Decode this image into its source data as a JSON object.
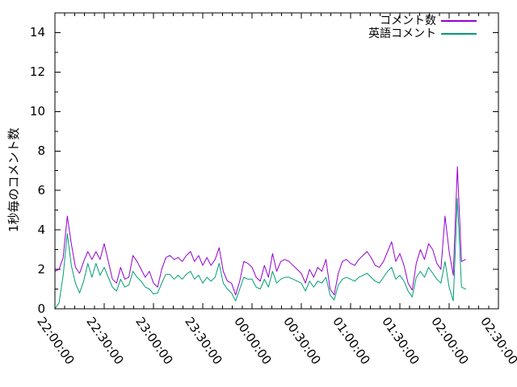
{
  "figure": {
    "background": "#ffffff",
    "border_color": "#000000",
    "text_color": "#000000"
  },
  "chart_data": {
    "type": "line",
    "title": "",
    "xlabel": "",
    "ylabel": "1秒毎のコメント数",
    "ylim": [
      0,
      15
    ],
    "grid": false,
    "legend_position": "top-right-inside",
    "y_major_ticks": [
      0,
      2,
      4,
      6,
      8,
      10,
      12,
      14
    ],
    "y_minor_step": 1,
    "x_axis": {
      "range_minutes": [
        0,
        270
      ],
      "minor_step_minutes": 6,
      "major_ticks": [
        {
          "minutes": 0,
          "label": "22:00:00"
        },
        {
          "minutes": 30,
          "label": "22:30:00"
        },
        {
          "minutes": 60,
          "label": "23:00:00"
        },
        {
          "minutes": 90,
          "label": "23:30:00"
        },
        {
          "minutes": 120,
          "label": "00:00:00"
        },
        {
          "minutes": 150,
          "label": "00:30:00"
        },
        {
          "minutes": 180,
          "label": "01:00:00"
        },
        {
          "minutes": 210,
          "label": "01:30:00"
        },
        {
          "minutes": 240,
          "label": "02:00:00"
        },
        {
          "minutes": 270,
          "label": "02:30:00"
        }
      ]
    },
    "sampling": {
      "start_time": "22:00:00",
      "end_time": "02:10:00",
      "interval_seconds": 150,
      "points": 101
    },
    "series": [
      {
        "name": "コメント数",
        "color": "#9400d3",
        "values": [
          1.9,
          2.0,
          2.6,
          4.7,
          3.3,
          2.1,
          1.8,
          2.4,
          2.9,
          2.5,
          2.9,
          2.5,
          3.3,
          2.4,
          1.5,
          1.3,
          2.1,
          1.5,
          1.6,
          2.7,
          2.4,
          2.0,
          1.6,
          1.9,
          1.3,
          1.1,
          2.0,
          2.6,
          2.7,
          2.5,
          2.6,
          2.4,
          2.7,
          2.9,
          2.4,
          2.7,
          2.2,
          2.6,
          2.2,
          2.5,
          3.1,
          1.9,
          1.4,
          1.3,
          0.7,
          1.4,
          2.4,
          2.3,
          2.1,
          1.6,
          1.4,
          2.2,
          1.6,
          2.8,
          1.9,
          2.4,
          2.5,
          2.4,
          2.2,
          2.0,
          1.8,
          1.3,
          2.0,
          1.6,
          2.1,
          1.9,
          2.5,
          1.0,
          0.7,
          1.8,
          2.4,
          2.5,
          2.3,
          2.2,
          2.5,
          2.7,
          2.9,
          2.6,
          2.2,
          2.1,
          2.4,
          2.9,
          3.4,
          2.4,
          2.8,
          2.2,
          1.3,
          0.95,
          2.3,
          3.0,
          2.5,
          3.3,
          3.0,
          2.3,
          2.0,
          4.7,
          2.9,
          1.7,
          7.2,
          2.4,
          2.5
        ]
      },
      {
        "name": "英語コメント",
        "color": "#009e73",
        "values": [
          0.0,
          0.3,
          1.7,
          3.8,
          2.2,
          1.3,
          0.8,
          1.4,
          2.3,
          1.6,
          2.3,
          1.7,
          2.1,
          1.6,
          1.1,
          0.9,
          1.5,
          1.1,
          1.2,
          1.9,
          1.6,
          1.4,
          1.1,
          1.0,
          0.75,
          0.8,
          1.3,
          1.75,
          1.75,
          1.5,
          1.7,
          1.5,
          1.75,
          1.9,
          1.5,
          1.7,
          1.3,
          1.6,
          1.4,
          1.6,
          2.3,
          1.3,
          1.0,
          0.8,
          0.4,
          1.0,
          1.6,
          1.5,
          1.5,
          1.1,
          1.0,
          1.5,
          1.1,
          1.9,
          1.3,
          1.5,
          1.6,
          1.6,
          1.5,
          1.4,
          1.3,
          0.9,
          1.4,
          1.1,
          1.4,
          1.3,
          1.6,
          0.7,
          0.45,
          1.2,
          1.5,
          1.6,
          1.5,
          1.4,
          1.6,
          1.7,
          1.8,
          1.6,
          1.4,
          1.3,
          1.6,
          1.9,
          2.1,
          1.5,
          1.7,
          1.4,
          0.9,
          0.6,
          1.6,
          1.9,
          1.6,
          2.1,
          1.8,
          1.5,
          1.3,
          2.4,
          1.1,
          0.4,
          5.6,
          1.1,
          1.0
        ]
      }
    ]
  }
}
